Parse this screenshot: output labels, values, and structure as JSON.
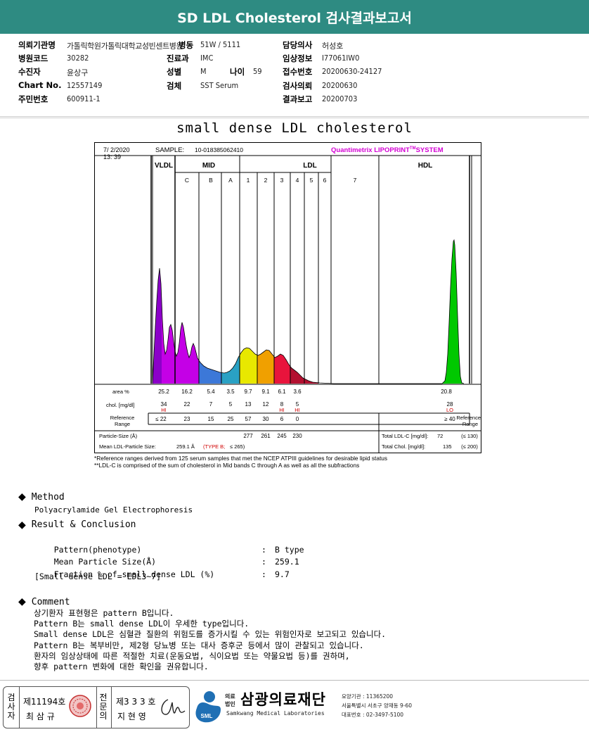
{
  "title": "SD LDL Cholesterol 검사결과보고서",
  "header": {
    "institution_label": "의뢰기관명",
    "institution_value": "가톨릭학원가톨릭대학교성빈센트병원",
    "ward_label": "병동",
    "ward_value": "51W / 5111",
    "doctor_label": "담당의사",
    "doctor_value": "허성호",
    "hospital_code_label": "병원코드",
    "hospital_code_value": "30282",
    "department_label": "진료과",
    "department_value": "IMC",
    "patient_info_label": "임상정보",
    "patient_info_value": "I77061IW0",
    "examinee_label": "수진자",
    "examinee_value": "윤상구",
    "sex_label": "성별",
    "sex_value": "M",
    "age_label": "나이",
    "age_value": "59",
    "receipt_no_label": "접수번호",
    "receipt_no_value": "20200630-24127",
    "chart_no_label": "Chart No.",
    "chart_no_value": "12557149",
    "specimen_label": "검체",
    "specimen_value": "SST Serum",
    "request_date_label": "검사의뢰",
    "request_date_value": "20200630",
    "id_no_label": "주민번호",
    "id_no_value": "600911-1",
    "report_date_label": "결과보고",
    "report_date_value": "20200703"
  },
  "report_title": "small dense LDL cholesterol",
  "chart_data": {
    "type": "area",
    "timestamp_date": "7/ 2/2020",
    "timestamp_time": "13: 39",
    "sample_label": "SAMPLE:",
    "sample_id": "10-018385062410",
    "system_name_a": "Quantimetrix LIPOPRINT",
    "system_name_tm": "TM",
    "system_name_b": "SYSTEM",
    "group_labels": [
      "VLDL",
      "MID",
      "LDL",
      "HDL"
    ],
    "band_labels": [
      "C",
      "B",
      "A",
      "1",
      "2",
      "3",
      "4",
      "5",
      "6",
      "7"
    ],
    "row_labels": {
      "area": "area %",
      "chol": "chol. [mg/dl]",
      "ref_a": "Reference",
      "ref_b": "Range",
      "ref_right_a": "Reference",
      "ref_right_b": "Range",
      "size": "Particle-Size (Å)",
      "mean": "Mean LDL-Particle Size:"
    },
    "area_values": [
      "25.2",
      "16.2",
      "5.4",
      "3.5",
      "9.7",
      "9.1",
      "6.1",
      "3.6"
    ],
    "area_hdl": "20.8",
    "chol_values": [
      "34",
      "22",
      "7",
      "5",
      "13",
      "12",
      "8",
      "5"
    ],
    "chol_hdl": "28",
    "flags": [
      "HI",
      "",
      "",
      "",
      "",
      "",
      "HI",
      "HI"
    ],
    "flag_hdl": "LO",
    "ref_values": [
      "≤ 22",
      "23",
      "15",
      "25",
      "57",
      "30",
      "6",
      "0"
    ],
    "ref_hdl": "≥ 40",
    "particle_sizes": [
      "277",
      "261",
      "245",
      "230"
    ],
    "mean_size_value": "259.1 Å",
    "mean_size_type": "(TYPE B;",
    "mean_size_range": "≤ 265)",
    "total_ldl_label": "Total LDL-C [mg/dl]:",
    "total_ldl_value": "72",
    "total_ldl_range": "(≤ 130)",
    "total_chol_label": "Total Chol. [mg/dl]:",
    "total_chol_value": "135",
    "total_chol_range": "(≤ 200)",
    "band_colors": [
      "#8b00c9",
      "#c400e6",
      "#3c78d8",
      "#2aa1c4",
      "#e8e800",
      "#f0a000",
      "#e8143c",
      "#b31030",
      "#00c800"
    ]
  },
  "footnotes": [
    "*Reference ranges derived from 125 serum samples that met the NCEP ATPIII guidelines for desirable lipid status",
    "**LDL-C is comprised of the sum of cholesterol in Mid bands C through A as well as all the subfractions"
  ],
  "method": {
    "heading": "Method",
    "text": "Polyacrylamide Gel Electrophoresis"
  },
  "result": {
    "heading": "Result & Conclusion",
    "rows": [
      {
        "label": "Pattern(phenotype)",
        "value": "B type"
      },
      {
        "label": "Mean Particle Size(Å)",
        "value": "259.1"
      },
      {
        "label": "Fraction % of small dense LDL (%)",
        "value": "9.7"
      }
    ],
    "note": "[Small dense LDL = LDL3~7]"
  },
  "comment": {
    "heading": "Comment",
    "lines": [
      "상기환자 표현형은 pattern B입니다.",
      "Pattern B는 small dense LDL이 우세한 type입니다.",
      "Small dense LDL은 심혈관 질환의 위험도를 증가시킬 수 있는 위험인자로 보고되고 있습니다.",
      "Pattern B는 복부비만, 제2형 당뇨병 또는 대사 증후군 등에서 많이 관찰되고 있습니다.",
      "환자의 임상상태에 따른 적절한 치료(운동요법, 식이요법 또는 약물요법 등)를 권하며,",
      "향후 pattern 변화에 대한 확인을 권유합니다."
    ]
  },
  "footer": {
    "examiner_label": "검사자",
    "examiner_no": "제11194호",
    "examiner_name": "최 삼 규",
    "specialist_label": "전문의",
    "specialist_no": "제3 3 3 호",
    "specialist_name": "지 현 영",
    "company_prefix_top": "의료",
    "company_prefix_bottom": "법인",
    "company_name": "삼광의료재단",
    "company_english": "Samkwang Medical Laboratories",
    "sml_logo": "SML",
    "agency_no": "요양기관 : 11365200",
    "address": "서울특별시 서초구 양재동 9-60",
    "phone": "대표번호 : 02-3497-5100"
  }
}
